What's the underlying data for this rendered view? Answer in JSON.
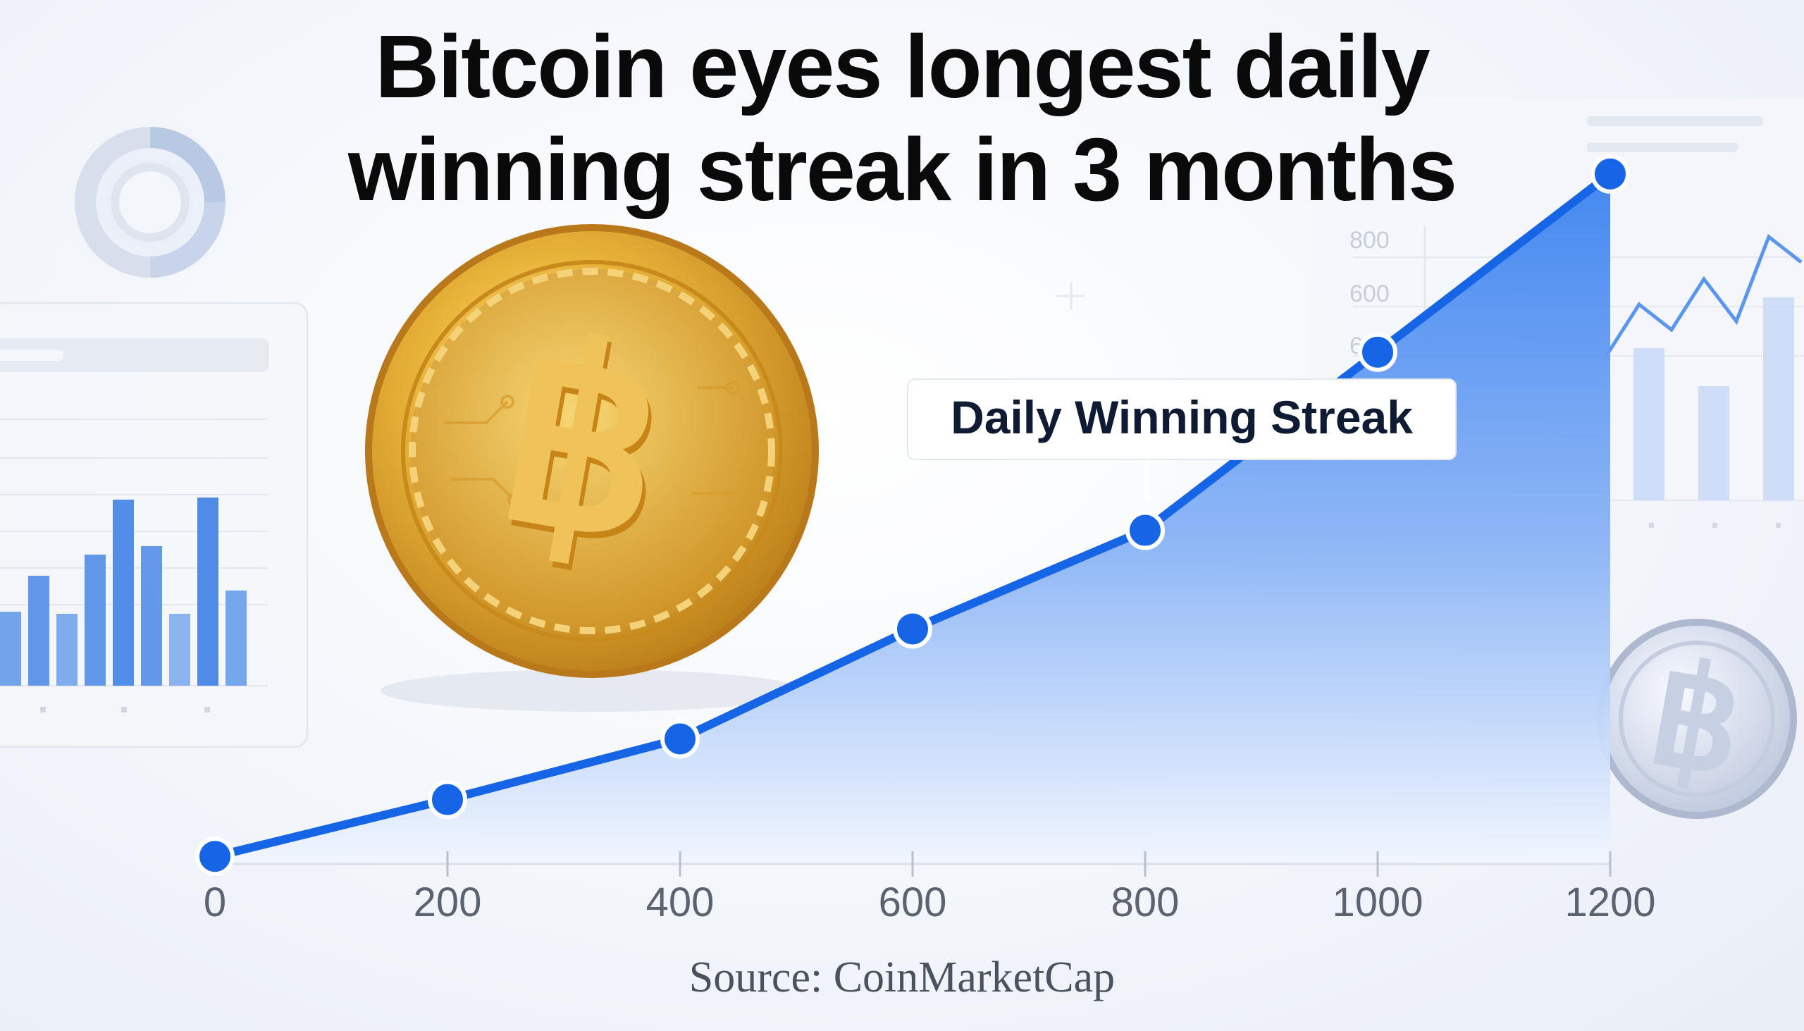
{
  "title": {
    "line1": "Bitcoin eyes longest daily",
    "line2": "winning streak in 3 months"
  },
  "source": "Source: CoinMarketCap",
  "colors": {
    "line": "#1665e6",
    "area_top": "#3f86f0",
    "area_bottom": "#f3f7fe",
    "axis_text": "#5b6270",
    "coin_gold": "#e3a725",
    "coin_silver": "#c9d2e6"
  },
  "icons": [
    "bitcoin-coin-icon",
    "silver-bitcoin-icon",
    "ring-chart-icon"
  ],
  "chart_data": [
    {
      "type": "area",
      "title": "",
      "xlabel": "",
      "ylabel": "",
      "x_ticks": [
        "0",
        "200",
        "400",
        "600",
        "800",
        "1000",
        "1200"
      ],
      "xlim": [
        0,
        1200
      ],
      "grid": false,
      "y_axis_shown": false,
      "series": [
        {
          "x": [
            0,
            200,
            400,
            600,
            800,
            1000,
            1200
          ],
          "y": [
            1,
            8.5,
            16.5,
            31,
            44,
            67.5,
            91
          ]
        }
      ],
      "annotation": {
        "text": "Daily Winning Streak",
        "x": 800
      }
    },
    {
      "type": "line",
      "title": "",
      "y_ticks": [
        "800",
        "600",
        "600"
      ],
      "series": [
        {
          "y": [
            40,
            70,
            55,
            85,
            60,
            110,
            95
          ]
        }
      ],
      "bars": [
        60,
        45,
        80
      ]
    },
    {
      "type": "bar",
      "title": "",
      "values": [
        35,
        52,
        34,
        62,
        88,
        66,
        34,
        89,
        45
      ],
      "ylim": [
        0,
        100
      ]
    }
  ]
}
